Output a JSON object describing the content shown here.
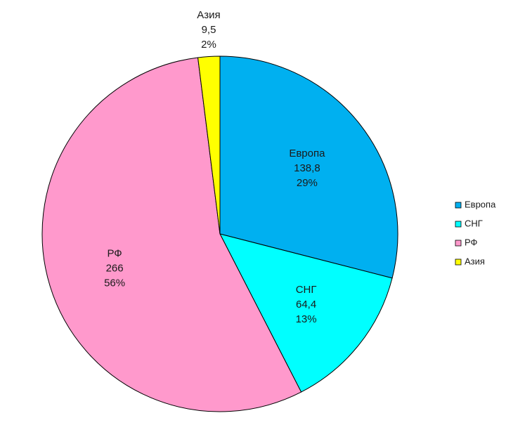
{
  "chart_data": {
    "type": "pie",
    "categories": [
      "Европа",
      "СНГ",
      "РФ",
      "Азия"
    ],
    "values": [
      138.8,
      64.4,
      266,
      9.5
    ],
    "value_labels": [
      "138,8",
      "64,4",
      "266",
      "9,5"
    ],
    "percent_labels": [
      "29%",
      "13%",
      "56%",
      "2%"
    ],
    "colors": [
      "#00b0f0",
      "#00ffff",
      "#ff99cc",
      "#ffff00"
    ],
    "start_angle_deg": 0,
    "direction": "clockwise",
    "legend": {
      "position": "right",
      "entries": [
        "Европа",
        "СНГ",
        "РФ",
        "Азия"
      ]
    }
  }
}
